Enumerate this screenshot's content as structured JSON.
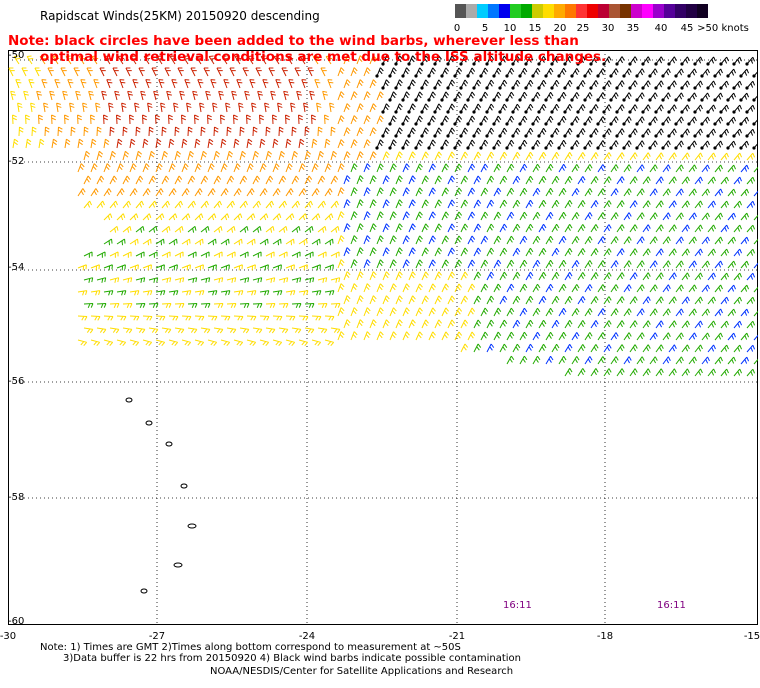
{
  "title": "Rapidscat Winds(25KM) 20150920 descending",
  "note": {
    "line1": "Note: black circles have been added to the wind barbs, wherever less than",
    "line2": "optimal wind retrieval conditions are met due to the ISS altitude changes."
  },
  "colorbar": {
    "colors": [
      "#555555",
      "#aaaaaa",
      "#00ccff",
      "#0077ff",
      "#0000ee",
      "#22cc22",
      "#00aa00",
      "#cccc00",
      "#ffdd00",
      "#ffaa00",
      "#ff7700",
      "#ff3333",
      "#ee0000",
      "#bb0033",
      "#aa5533",
      "#773300",
      "#cc00cc",
      "#ff00ff",
      "#9900cc",
      "#550099",
      "#330066",
      "#220044",
      "#110022"
    ],
    "labels": [
      "0",
      "5",
      "10",
      "15",
      "20",
      "25",
      "30",
      "35",
      "40",
      "45",
      ">50 knots"
    ]
  },
  "map": {
    "lat_labels": [
      "-50",
      "-52",
      "-54",
      "-56",
      "-58",
      "-60"
    ],
    "lon_labels": [
      "-30",
      "-27",
      "-24",
      "-21",
      "-18",
      "-15"
    ],
    "time_labels": [
      "16:11",
      "16:11"
    ],
    "barb_colors": {
      "calm": "#000000",
      "light": "#ffdd00",
      "moderate": "#ff9900",
      "strong": "#cc2200",
      "green": "#22aa00",
      "blue": "#0033ff"
    }
  },
  "footer": {
    "line1": "Note: 1) Times are GMT 2)Times along bottom correspond to measurement at ~50S",
    "line2": "3)Data buffer is 22 hrs from 20150920 4) Black wind barbs indicate possible contamination",
    "line3": "NOAA/NESDIS/Center for Satellite Applications and Research"
  }
}
